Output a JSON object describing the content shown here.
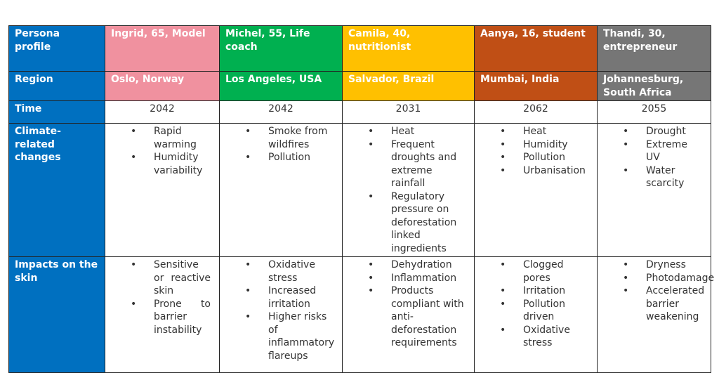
{
  "row_labels": {
    "persona": "Persona profile",
    "region": "Region",
    "time": "Time",
    "climate": "Climate-related changes",
    "impacts": "Impacts on the skin"
  },
  "colors": {
    "label": "#0070c0",
    "ingrid": "#f0919f",
    "michel": "#00b050",
    "camila": "#ffc000",
    "aanya": "#c04f15",
    "thandi": "#767676"
  },
  "personas": [
    {
      "profile": "Ingrid, 65, Model",
      "region": "Oslo, Norway",
      "time": "2042",
      "color": "#f0919f",
      "climate": [
        "Rapid warming",
        "Humidity variability"
      ],
      "impacts": [
        "Sensitive or reactive skin",
        "Prone to barrier instability"
      ]
    },
    {
      "profile": "Michel, 55, Life coach",
      "region": "Los Angeles, USA",
      "time": "2042",
      "color": "#00b050",
      "climate": [
        "Smoke from wildfires",
        "Pollution"
      ],
      "impacts": [
        "Oxidative stress",
        "Increased irritation",
        "Higher risks of inflammatory flareups"
      ]
    },
    {
      "profile": "Camila, 40, nutritionist",
      "region": "Salvador, Brazil",
      "time": "2031",
      "color": "#ffc000",
      "climate": [
        "Heat",
        "Frequent droughts and extreme rainfall",
        "Regulatory pressure on deforestation linked ingredients"
      ],
      "impacts": [
        "Dehydration",
        "Inflammation",
        "Products compliant with anti-deforestation requirements"
      ]
    },
    {
      "profile": "Aanya, 16, student",
      "region": "Mumbai, India",
      "time": "2062",
      "color": "#c04f15",
      "climate": [
        "Heat",
        "Humidity",
        "Pollution",
        "Urbanisation"
      ],
      "impacts": [
        "Clogged pores",
        "Irritation",
        "Pollution driven",
        "Oxidative stress"
      ]
    },
    {
      "profile": "Thandi, 30, entrepreneur",
      "region": "Johannesburg, South Africa",
      "time": "2055",
      "color": "#767676",
      "climate": [
        "Drought",
        "Extreme UV",
        "Water scarcity"
      ],
      "impacts": [
        "Dryness",
        "Photodamage",
        "Accelerated barrier weakening"
      ]
    }
  ]
}
